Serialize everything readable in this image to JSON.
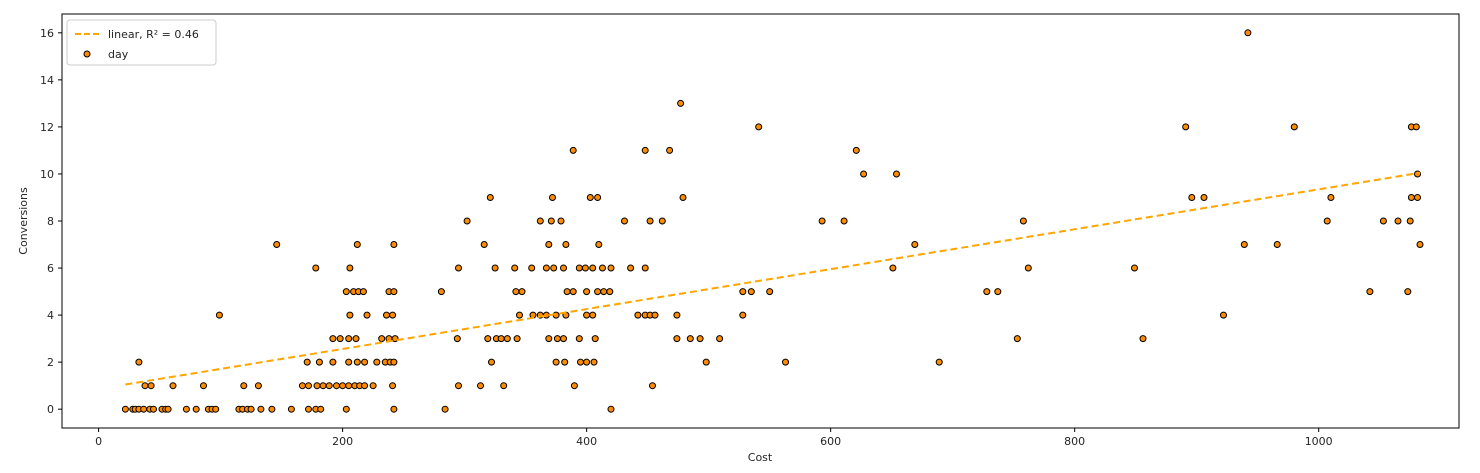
{
  "chart_data": {
    "type": "scatter",
    "xlabel": "Cost",
    "ylabel": "Conversions",
    "xlim": [
      -30,
      1115
    ],
    "ylim": [
      -0.8,
      16.8
    ],
    "xticks": [
      0,
      200,
      400,
      600,
      800,
      1000
    ],
    "yticks": [
      0,
      2,
      4,
      6,
      8,
      10,
      12,
      14,
      16
    ],
    "grid": false,
    "legend_position": "top-left",
    "point_color": "#ff8c00",
    "point_edge_color": "#000000",
    "line_color": "#ffa500",
    "series": [
      {
        "name": "day",
        "kind": "points",
        "points": [
          [
            22,
            0
          ],
          [
            28,
            0
          ],
          [
            30,
            0
          ],
          [
            33,
            0
          ],
          [
            37,
            0
          ],
          [
            42,
            0
          ],
          [
            45,
            0
          ],
          [
            52,
            0
          ],
          [
            55,
            0
          ],
          [
            57,
            0
          ],
          [
            72,
            0
          ],
          [
            80,
            0
          ],
          [
            90,
            0
          ],
          [
            93,
            0
          ],
          [
            96,
            0
          ],
          [
            115,
            0
          ],
          [
            118,
            0
          ],
          [
            122,
            0
          ],
          [
            125,
            0
          ],
          [
            133,
            0
          ],
          [
            142,
            0
          ],
          [
            158,
            0
          ],
          [
            172,
            0
          ],
          [
            178,
            0
          ],
          [
            182,
            0
          ],
          [
            203,
            0
          ],
          [
            242,
            0
          ],
          [
            284,
            0
          ],
          [
            420,
            0
          ],
          [
            38,
            1
          ],
          [
            43,
            1
          ],
          [
            61,
            1
          ],
          [
            86,
            1
          ],
          [
            119,
            1
          ],
          [
            131,
            1
          ],
          [
            167,
            1
          ],
          [
            172,
            1
          ],
          [
            179,
            1
          ],
          [
            184,
            1
          ],
          [
            189,
            1
          ],
          [
            195,
            1
          ],
          [
            200,
            1
          ],
          [
            205,
            1
          ],
          [
            210,
            1
          ],
          [
            214,
            1
          ],
          [
            218,
            1
          ],
          [
            225,
            1
          ],
          [
            241,
            1
          ],
          [
            295,
            1
          ],
          [
            313,
            1
          ],
          [
            332,
            1
          ],
          [
            390,
            1
          ],
          [
            454,
            1
          ],
          [
            33,
            2
          ],
          [
            171,
            2
          ],
          [
            181,
            2
          ],
          [
            192,
            2
          ],
          [
            205,
            2
          ],
          [
            212,
            2
          ],
          [
            218,
            2
          ],
          [
            228,
            2
          ],
          [
            235,
            2
          ],
          [
            239,
            2
          ],
          [
            242,
            2
          ],
          [
            322,
            2
          ],
          [
            375,
            2
          ],
          [
            382,
            2
          ],
          [
            395,
            2
          ],
          [
            400,
            2
          ],
          [
            406,
            2
          ],
          [
            498,
            2
          ],
          [
            563,
            2
          ],
          [
            689,
            2
          ],
          [
            192,
            3
          ],
          [
            198,
            3
          ],
          [
            205,
            3
          ],
          [
            211,
            3
          ],
          [
            232,
            3
          ],
          [
            238,
            3
          ],
          [
            243,
            3
          ],
          [
            294,
            3
          ],
          [
            319,
            3
          ],
          [
            326,
            3
          ],
          [
            330,
            3
          ],
          [
            335,
            3
          ],
          [
            343,
            3
          ],
          [
            369,
            3
          ],
          [
            376,
            3
          ],
          [
            381,
            3
          ],
          [
            394,
            3
          ],
          [
            407,
            3
          ],
          [
            474,
            3
          ],
          [
            485,
            3
          ],
          [
            493,
            3
          ],
          [
            509,
            3
          ],
          [
            753,
            3
          ],
          [
            856,
            3
          ],
          [
            99,
            4
          ],
          [
            206,
            4
          ],
          [
            220,
            4
          ],
          [
            236,
            4
          ],
          [
            241,
            4
          ],
          [
            345,
            4
          ],
          [
            356,
            4
          ],
          [
            362,
            4
          ],
          [
            367,
            4
          ],
          [
            375,
            4
          ],
          [
            383,
            4
          ],
          [
            400,
            4
          ],
          [
            405,
            4
          ],
          [
            442,
            4
          ],
          [
            448,
            4
          ],
          [
            452,
            4
          ],
          [
            456,
            4
          ],
          [
            474,
            4
          ],
          [
            528,
            4
          ],
          [
            922,
            4
          ],
          [
            203,
            5
          ],
          [
            209,
            5
          ],
          [
            213,
            5
          ],
          [
            217,
            5
          ],
          [
            238,
            5
          ],
          [
            242,
            5
          ],
          [
            281,
            5
          ],
          [
            342,
            5
          ],
          [
            347,
            5
          ],
          [
            384,
            5
          ],
          [
            389,
            5
          ],
          [
            400,
            5
          ],
          [
            409,
            5
          ],
          [
            414,
            5
          ],
          [
            419,
            5
          ],
          [
            528,
            5
          ],
          [
            535,
            5
          ],
          [
            550,
            5
          ],
          [
            728,
            5
          ],
          [
            737,
            5
          ],
          [
            1042,
            5
          ],
          [
            1073,
            5
          ],
          [
            178,
            6
          ],
          [
            206,
            6
          ],
          [
            295,
            6
          ],
          [
            325,
            6
          ],
          [
            341,
            6
          ],
          [
            355,
            6
          ],
          [
            367,
            6
          ],
          [
            373,
            6
          ],
          [
            381,
            6
          ],
          [
            394,
            6
          ],
          [
            399,
            6
          ],
          [
            405,
            6
          ],
          [
            413,
            6
          ],
          [
            420,
            6
          ],
          [
            436,
            6
          ],
          [
            448,
            6
          ],
          [
            651,
            6
          ],
          [
            762,
            6
          ],
          [
            849,
            6
          ],
          [
            146,
            7
          ],
          [
            212,
            7
          ],
          [
            242,
            7
          ],
          [
            316,
            7
          ],
          [
            369,
            7
          ],
          [
            383,
            7
          ],
          [
            410,
            7
          ],
          [
            669,
            7
          ],
          [
            939,
            7
          ],
          [
            966,
            7
          ],
          [
            1083,
            7
          ],
          [
            302,
            8
          ],
          [
            362,
            8
          ],
          [
            371,
            8
          ],
          [
            379,
            8
          ],
          [
            431,
            8
          ],
          [
            452,
            8
          ],
          [
            462,
            8
          ],
          [
            593,
            8
          ],
          [
            611,
            8
          ],
          [
            758,
            8
          ],
          [
            1007,
            8
          ],
          [
            1053,
            8
          ],
          [
            1065,
            8
          ],
          [
            1075,
            8
          ],
          [
            321,
            9
          ],
          [
            372,
            9
          ],
          [
            403,
            9
          ],
          [
            409,
            9
          ],
          [
            479,
            9
          ],
          [
            896,
            9
          ],
          [
            906,
            9
          ],
          [
            1010,
            9
          ],
          [
            1076,
            9
          ],
          [
            1081,
            9
          ],
          [
            389,
            11
          ],
          [
            448,
            11
          ],
          [
            468,
            11
          ],
          [
            621,
            11
          ],
          [
            627,
            10
          ],
          [
            654,
            10
          ],
          [
            1081,
            10
          ],
          [
            541,
            12
          ],
          [
            891,
            12
          ],
          [
            980,
            12
          ],
          [
            1076,
            12
          ],
          [
            1080,
            12
          ],
          [
            477,
            13
          ],
          [
            942,
            16
          ]
        ]
      },
      {
        "name": "linear, R² = 0.46",
        "kind": "fit-line",
        "x": [
          22,
          1083
        ],
        "y": [
          1.05,
          10.05
        ]
      }
    ]
  }
}
